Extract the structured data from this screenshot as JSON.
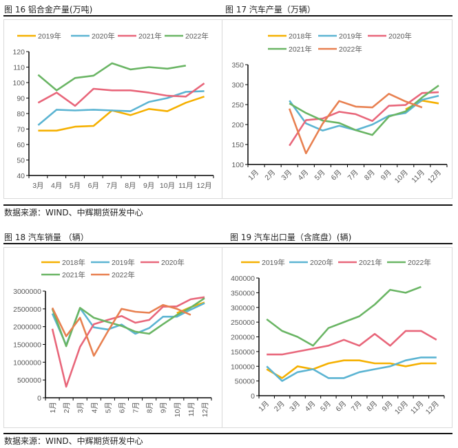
{
  "figures": [
    {
      "title": "图 16 铝合金产量(万吨)"
    },
    {
      "title": "图 17 汽车产量（万辆）"
    },
    {
      "title": "图 18 汽车销量 （辆）"
    },
    {
      "title": "图 19 汽车出口量（含底盘）(辆)"
    }
  ],
  "source_top": "数据来源：WIND、中辉期货研发中心",
  "source_bottom": "数据来源：WIND、中辉期货研发中心",
  "chart_data": [
    {
      "type": "line",
      "title": "图 16 铝合金产量(万吨)",
      "ylim": [
        40,
        120
      ],
      "ystep": 10,
      "legend": "top",
      "categories": [
        "3月",
        "4月",
        "5月",
        "6月",
        "7月",
        "8月",
        "9月",
        "10月",
        "11月",
        "12月"
      ],
      "series": [
        {
          "name": "2019年",
          "color": "#F5B000",
          "values": [
            69,
            69,
            71.5,
            72,
            82,
            79,
            83,
            81.5,
            87,
            91
          ]
        },
        {
          "name": "2020年",
          "color": "#5BB4D2",
          "values": [
            72.5,
            82.5,
            82,
            82.5,
            82,
            81.5,
            87.5,
            90,
            94,
            94.5
          ]
        },
        {
          "name": "2021年",
          "color": "#E8667A",
          "values": [
            87,
            93.5,
            85,
            96,
            95,
            95,
            93.5,
            91.5,
            91,
            99.5
          ]
        },
        {
          "name": "2022年",
          "color": "#6AB564",
          "values": [
            105,
            95,
            103,
            104.5,
            112.5,
            108.5,
            110,
            109,
            111,
            null
          ]
        }
      ]
    },
    {
      "type": "line",
      "title": "图 17 汽车产量（万辆）",
      "ylim": [
        100,
        350
      ],
      "ystep": 50,
      "legend": "top",
      "categories": [
        "1月",
        "2月",
        "3月",
        "4月",
        "5月",
        "6月",
        "7月",
        "8月",
        "9月",
        "10月",
        "11月",
        "12月"
      ],
      "series": [
        {
          "name": "2018年",
          "color": "#F5B000",
          "values": [
            null,
            null,
            null,
            null,
            null,
            null,
            null,
            null,
            null,
            238,
            260,
            253
          ]
        },
        {
          "name": "2019年",
          "color": "#5BB4D2",
          "values": [
            null,
            null,
            260,
            203,
            185,
            197,
            186,
            200,
            222,
            229,
            262,
            272
          ]
        },
        {
          "name": "2020年",
          "color": "#E8667A",
          "values": [
            null,
            null,
            147,
            211,
            215,
            232,
            226,
            209,
            247,
            249,
            279,
            281
          ]
        },
        {
          "name": "2021年",
          "color": "#6AB564",
          "values": [
            null,
            null,
            253,
            229,
            210,
            204,
            186,
            174,
            220,
            233,
            268,
            298
          ]
        },
        {
          "name": "2022年",
          "color": "#E88050",
          "values": [
            null,
            null,
            240,
            128,
            202,
            259,
            245,
            243,
            277,
            258,
            243,
            null
          ]
        }
      ]
    },
    {
      "type": "line",
      "title": "图 18 汽车销量 （辆）",
      "ylim": [
        0,
        3000000
      ],
      "ystep": 500000,
      "legend": "top",
      "categories": [
        "1月",
        "2月",
        "3月",
        "4月",
        "5月",
        "6月",
        "7月",
        "8月",
        "9月",
        "10月",
        "11月",
        "12月"
      ],
      "series": [
        {
          "name": "2018年",
          "color": "#F5B000",
          "values": [
            null,
            null,
            null,
            null,
            null,
            null,
            null,
            null,
            null,
            2380000,
            2550000,
            2680000
          ]
        },
        {
          "name": "2019年",
          "color": "#5BB4D2",
          "values": [
            2370000,
            1480000,
            2520000,
            1980000,
            1920000,
            2060000,
            1800000,
            1960000,
            2280000,
            2280000,
            2480000,
            2660000
          ]
        },
        {
          "name": "2020年",
          "color": "#E8667A",
          "values": [
            1940000,
            310000,
            1430000,
            2070000,
            2190000,
            2300000,
            2110000,
            2190000,
            2560000,
            2570000,
            2770000,
            2830000
          ]
        },
        {
          "name": "2021年",
          "color": "#6AB564",
          "values": [
            2500000,
            1450000,
            2530000,
            2250000,
            2130000,
            2020000,
            1860000,
            1800000,
            2070000,
            2330000,
            2540000,
            2800000
          ]
        },
        {
          "name": "2022年",
          "color": "#E88050",
          "values": [
            2530000,
            1730000,
            2250000,
            1180000,
            1860000,
            2500000,
            2420000,
            2390000,
            2610000,
            2500000,
            2330000,
            null
          ]
        }
      ]
    },
    {
      "type": "line",
      "title": "图 19 汽车出口量（含底盘）(辆)",
      "ylim": [
        0,
        400000
      ],
      "ystep": 50000,
      "legend": "top",
      "categories": [
        "1月",
        "2月",
        "3月",
        "4月",
        "5月",
        "6月",
        "7月",
        "8月",
        "9月",
        "10月",
        "11月",
        "12月"
      ],
      "series": [
        {
          "name": "2019年",
          "color": "#F5B000",
          "values": [
            90000,
            60000,
            100000,
            90000,
            110000,
            120000,
            120000,
            110000,
            110000,
            100000,
            110000,
            110000
          ]
        },
        {
          "name": "2020年",
          "color": "#5BB4D2",
          "values": [
            100000,
            50000,
            80000,
            90000,
            60000,
            60000,
            80000,
            90000,
            100000,
            120000,
            130000,
            130000
          ]
        },
        {
          "name": "2021年",
          "color": "#E8667A",
          "values": [
            140000,
            140000,
            150000,
            160000,
            170000,
            190000,
            170000,
            210000,
            170000,
            220000,
            220000,
            190000
          ]
        },
        {
          "name": "2022年",
          "color": "#6AB564",
          "values": [
            260000,
            220000,
            200000,
            170000,
            230000,
            250000,
            270000,
            310000,
            360000,
            350000,
            370000,
            null
          ]
        }
      ]
    }
  ]
}
